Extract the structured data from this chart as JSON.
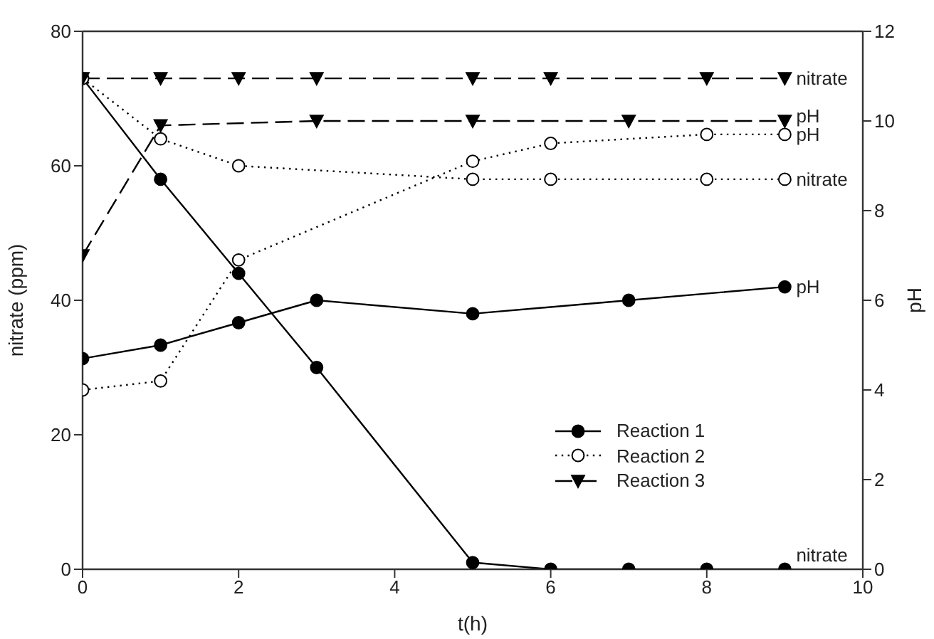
{
  "chart_data": {
    "type": "line",
    "xlabel": "t(h)",
    "ylabel": "nitrate (ppm)",
    "y2label": "pH",
    "xlim": [
      0,
      10
    ],
    "xticks": [
      0,
      2,
      4,
      6,
      8,
      10
    ],
    "ylim": [
      0,
      80
    ],
    "yticks": [
      0,
      20,
      40,
      60,
      80
    ],
    "y2lim": [
      0,
      12
    ],
    "y2ticks": [
      0,
      2,
      4,
      6,
      8,
      10,
      12
    ],
    "legend": "bottom right",
    "series": [
      {
        "name": "Reaction 1",
        "color": "#000000",
        "marker": "circle",
        "line_style": "solid",
        "x": [
          0,
          1,
          2,
          3,
          5,
          6,
          7,
          8,
          9
        ],
        "values": [
          73,
          58,
          44,
          30,
          1,
          0,
          0,
          0,
          0
        ]
      },
      {
        "name": "pH",
        "color": "#000000",
        "marker": "circle",
        "line_style": "solid",
        "axis": "y2",
        "x": [
          0,
          1,
          2,
          3,
          5,
          7,
          9
        ],
        "values": [
          4.7,
          5.0,
          5.5,
          6.0,
          5.7,
          6.0,
          6.3
        ]
      },
      {
        "name": "Reaction 2",
        "color": "#000000",
        "marker": "circle-open",
        "line_style": "dotted",
        "x": [
          0,
          1,
          2,
          5,
          6,
          8,
          9
        ],
        "values": [
          73,
          64,
          60,
          58,
          58,
          58,
          58
        ]
      },
      {
        "name": "pH",
        "color": "#000000",
        "marker": "circle-open",
        "line_style": "dotted",
        "axis": "y2",
        "x": [
          0,
          1,
          2,
          5,
          6,
          8,
          9
        ],
        "values": [
          4.0,
          4.2,
          6.9,
          9.1,
          9.5,
          9.7,
          9.7
        ]
      },
      {
        "name": "Reaction 3",
        "color": "#000000",
        "marker": "triangle",
        "line_style": "dashed",
        "x": [
          0,
          1,
          2,
          3,
          5,
          6,
          8,
          9
        ],
        "values": [
          73,
          73,
          73,
          73,
          73,
          73,
          73,
          73
        ]
      },
      {
        "name": "pH",
        "color": "#000000",
        "marker": "triangle",
        "line_style": "dashed",
        "axis": "y2",
        "x": [
          0,
          1,
          3,
          5,
          7,
          9
        ],
        "values": [
          7.0,
          9.9,
          10.0,
          10.0,
          10.0,
          10.0
        ]
      }
    ],
    "annotations": [
      "nitrate",
      "nitrate",
      "nitrate"
    ]
  }
}
